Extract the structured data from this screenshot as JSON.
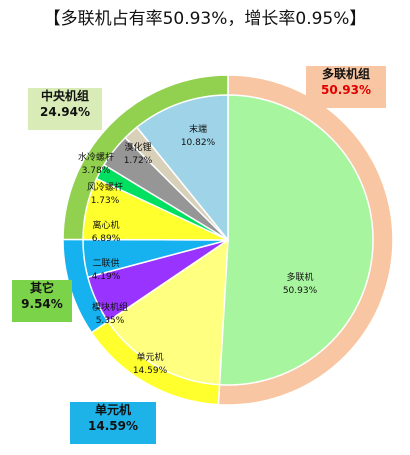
{
  "page": {
    "title": "【多联机占有率50.93%，增长率0.95%】"
  },
  "callouts": {
    "multi": {
      "name": "多联机组",
      "value": "50.93%",
      "bg": "#f8c6a2",
      "text_color": "#e00000"
    },
    "central": {
      "name": "中央机组",
      "value": "24.94%",
      "bg": "#d9ecb7",
      "text_color": "#111111"
    },
    "other": {
      "name": "其它",
      "value": "9.54%",
      "bg": "#7bd34a",
      "text_color": "#111111"
    },
    "unit": {
      "name": "单元机",
      "value": "14.59%",
      "bg": "#1eb3e8",
      "text_color": "#111111"
    }
  },
  "chart_data": {
    "type": "pie",
    "title": "【多联机占有率50.93%，增长率0.95%】",
    "outer_ring": {
      "categories": [
        "多联机组",
        "单元机",
        "其它",
        "中央机组"
      ],
      "values": [
        50.93,
        14.59,
        9.54,
        24.94
      ],
      "colors": [
        "#f8c6a2",
        "#ffff2e",
        "#16b2f0",
        "#92d050"
      ]
    },
    "inner_pie": {
      "categories": [
        "多联机",
        "单元机",
        "模块机组",
        "二联供",
        "离心机",
        "风冷螺杆",
        "水冷螺杆",
        "溴化锂",
        "末端"
      ],
      "values": [
        50.93,
        14.59,
        5.35,
        4.19,
        6.89,
        1.73,
        3.78,
        1.72,
        10.82
      ],
      "labels": [
        "50.93%",
        "14.59%",
        "5.35%",
        "4.19%",
        "6.89%",
        "1.73%",
        "3.78%",
        "1.72%",
        "10.82%"
      ],
      "colors": [
        "#a8f5a0",
        "#ffff80",
        "#9933ff",
        "#16b2f0",
        "#ffff2e",
        "#00e060",
        "#969696",
        "#d8d0b8",
        "#9fd4e8"
      ]
    }
  }
}
